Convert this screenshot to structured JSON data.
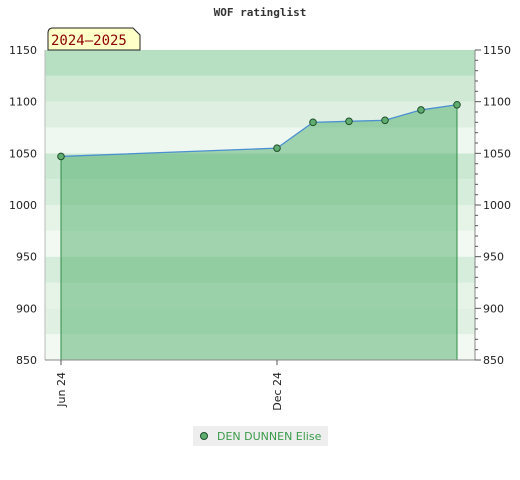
{
  "colors": {
    "accent_line": "#4a8fd0",
    "marker_fill": "#5fae6f",
    "legend_text": "#3a9a4a",
    "badge_bg": "#ffffc8",
    "badge_text": "#8b0000"
  },
  "chart_data": {
    "type": "line",
    "title": "WOF ratinglist",
    "badge": "2024–2025",
    "xlabel": "",
    "ylabel": "",
    "ylim": [
      850,
      1150
    ],
    "y_ticks": [
      "1150",
      "1100",
      "1050",
      "1000",
      "950",
      "900",
      "850"
    ],
    "y_ticks_right": [
      "1150",
      "1100",
      "1050",
      "1000",
      "950",
      "900",
      "850"
    ],
    "x_tick_labels": [
      "Jun 24",
      "Dec 24"
    ],
    "series": [
      {
        "name": "DEN DUNNEN Elise",
        "x": [
          "2024-06",
          "2024-12",
          "2025-01",
          "2025-02",
          "2025-03",
          "2025-04",
          "2025-05"
        ],
        "values": [
          1047,
          1055,
          1080,
          1081,
          1082,
          1092,
          1097
        ]
      }
    ],
    "grid": true,
    "legend": "bottom-center",
    "area_fill": true
  }
}
